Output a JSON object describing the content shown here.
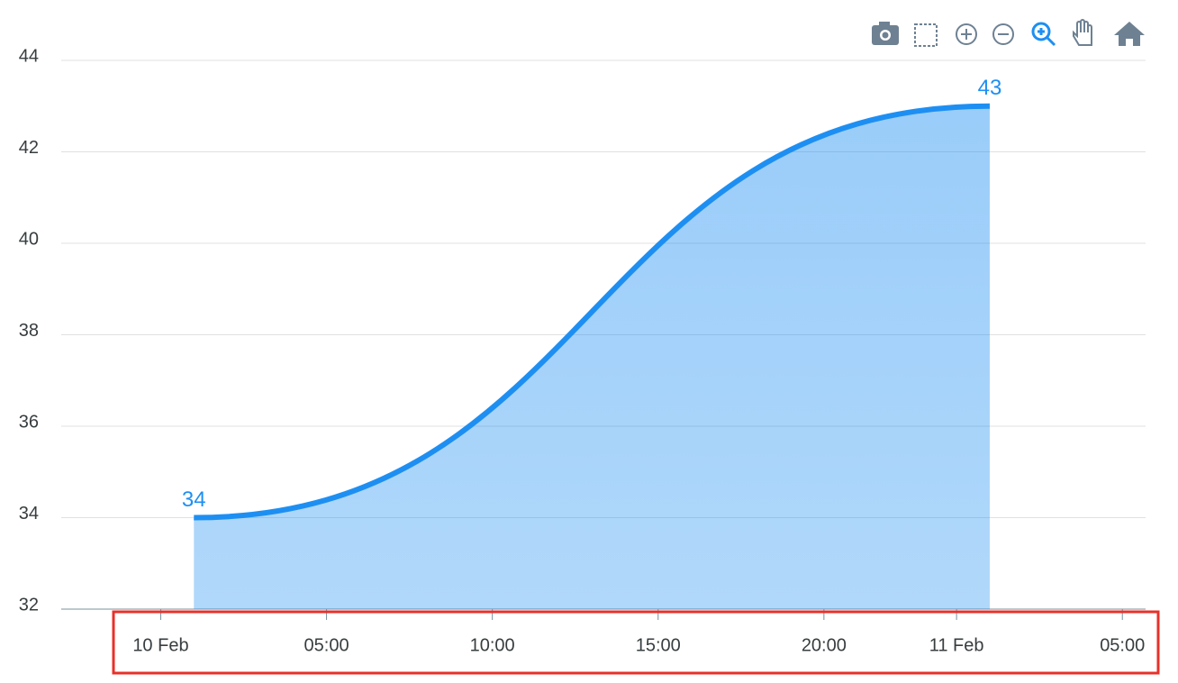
{
  "chart_data": {
    "type": "area",
    "x": [
      1,
      25
    ],
    "series": [
      {
        "color": "#1e8ff2",
        "values": [
          34,
          43
        ]
      }
    ],
    "xlim": [
      -3,
      29.7
    ],
    "xticks": [
      {
        "value": 0,
        "label": "10 Feb"
      },
      {
        "value": 5,
        "label": "05:00"
      },
      {
        "value": 10,
        "label": "10:00"
      },
      {
        "value": 15,
        "label": "15:00"
      },
      {
        "value": 20,
        "label": "20:00"
      },
      {
        "value": 24,
        "label": "11 Feb"
      },
      {
        "value": 29,
        "label": "05:00"
      }
    ],
    "ylim": [
      32,
      44
    ],
    "yticks": [
      32,
      34,
      36,
      38,
      40,
      42,
      44
    ],
    "grid": true,
    "data_labels": true
  }
}
